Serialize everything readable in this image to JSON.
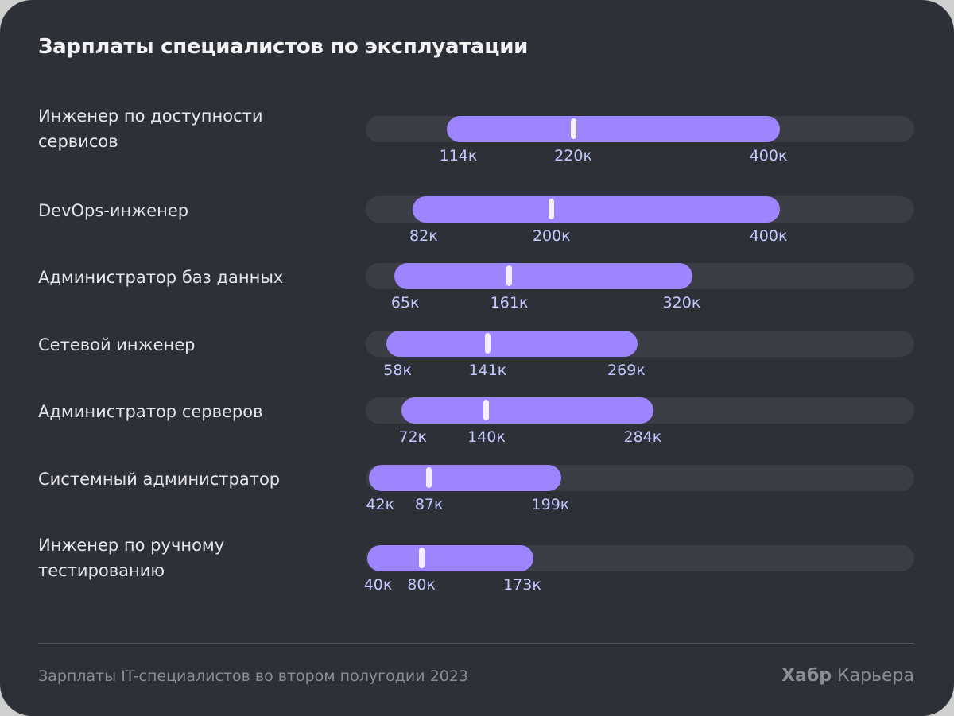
{
  "chart_data": {
    "type": "bar",
    "subtype": "range-with-median",
    "title": "Зарплаты специалистов по эксплуатации",
    "unit_suffix": "к",
    "categories": [
      "Инженер по доступности сервисов",
      "DevOps-инженер",
      "Администратор баз данных",
      "Сетевой инженер",
      "Администратор серверов",
      "Системный администратор",
      "Инженер по ручному тестированию"
    ],
    "category_lines": [
      [
        "Инженер по доступности",
        "сервисов"
      ],
      [
        "DevOps-инженер"
      ],
      [
        "Администратор баз данных"
      ],
      [
        "Сетевой инженер"
      ],
      [
        "Администратор серверов"
      ],
      [
        "Системный администратор"
      ],
      [
        "Инженер по ручному",
        "тестированию"
      ]
    ],
    "series": [
      {
        "name": "min",
        "values": [
          114,
          82,
          65,
          58,
          72,
          42,
          40
        ]
      },
      {
        "name": "median",
        "values": [
          220,
          200,
          161,
          141,
          140,
          87,
          80
        ]
      },
      {
        "name": "max",
        "values": [
          400,
          400,
          320,
          269,
          284,
          199,
          173
        ]
      }
    ],
    "labels": [
      [
        "114к",
        "220к",
        "400к"
      ],
      [
        "82к",
        "200к",
        "400к"
      ],
      [
        "65к",
        "161к",
        "320к"
      ],
      [
        "58к",
        "141к",
        "269к"
      ],
      [
        "72к",
        "140к",
        "284к"
      ],
      [
        "42к",
        "87к",
        "199к"
      ],
      [
        "40к",
        "80к",
        "173к"
      ]
    ],
    "grid": false,
    "colors": {
      "background": "#2d3037",
      "track": "#3a3d44",
      "range": "#9d85ff",
      "median": "#f3f0ff",
      "value_label": "#c3c9ff"
    }
  },
  "footer": {
    "source": "Зарплаты IT-специалистов во втором полугодии 2023",
    "logo_bold": "Хабр",
    "logo_rest": " Карьера"
  }
}
